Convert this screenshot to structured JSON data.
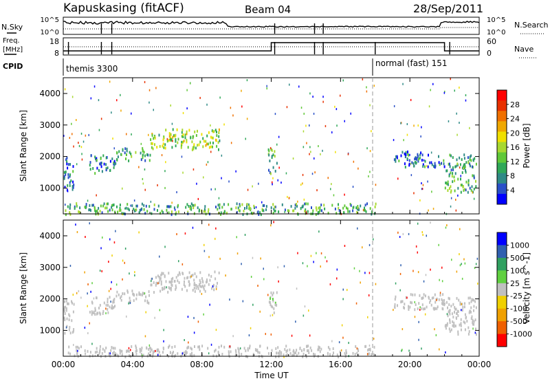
{
  "header": {
    "station": "Kapuskasing (fitACF)",
    "beam": "Beam 04",
    "date": "28/Sep/2011"
  },
  "noise_panel": {
    "left_label": "N.Sky",
    "right_label": "N.Search",
    "left_ticks": [
      "10^5",
      "10^0"
    ],
    "right_ticks": [
      "10^5",
      "10^0"
    ]
  },
  "freq_panel": {
    "left_label_line1": "Freq.",
    "left_label_line2": "[MHz]",
    "right_label": "Nave",
    "left_ticks": [
      "18",
      "8"
    ],
    "right_ticks": [
      "60",
      "0"
    ]
  },
  "cpid_panel": {
    "label": "CPID",
    "modes": [
      {
        "name": "themis 3300",
        "start_hour": 0
      },
      {
        "name": "normal (fast) 151",
        "start_hour": 18
      }
    ]
  },
  "x_axis": {
    "label": "Time UT",
    "tick_labels": [
      "00:00",
      "04:00",
      "08:00",
      "12:00",
      "16:00",
      "20:00",
      "00:00"
    ],
    "range_hours": [
      0,
      24
    ]
  },
  "chart_data": [
    {
      "type": "heatmap",
      "title": "Power",
      "ylabel": "Slant Range [km]",
      "ylim": [
        180,
        4500
      ],
      "y_ticks": [
        "1000",
        "2000",
        "3000",
        "4000"
      ],
      "colorbar": {
        "label": "Power [dB]",
        "ticks": [
          "28",
          "24",
          "20",
          "16",
          "12",
          "8",
          "4"
        ],
        "range": [
          0,
          30
        ],
        "colors": [
          "#0000ff",
          "#2a50c8",
          "#2f8a86",
          "#30a858",
          "#60c838",
          "#a8d830",
          "#f0e000",
          "#f0a800",
          "#f07000",
          "#e83000",
          "#ff0000"
        ]
      },
      "regions": [
        {
          "t0": 0.0,
          "t1": 0.6,
          "r0": 900,
          "r1": 2000,
          "level": 6
        },
        {
          "t0": 1.5,
          "t1": 3.0,
          "r0": 1500,
          "r1": 2100,
          "level": 6
        },
        {
          "t0": 3.0,
          "t1": 5.0,
          "r0": 1900,
          "r1": 2300,
          "level": 8
        },
        {
          "t0": 5.0,
          "t1": 9.0,
          "r0": 2250,
          "r1": 2900,
          "level": 14
        },
        {
          "t0": 11.8,
          "t1": 12.3,
          "r0": 1500,
          "r1": 2300,
          "level": 10
        },
        {
          "t0": 19.0,
          "t1": 22.0,
          "r0": 1700,
          "r1": 2200,
          "level": 6
        },
        {
          "t0": 22.0,
          "t1": 23.8,
          "r0": 900,
          "r1": 2100,
          "level": 10
        },
        {
          "t0": 0.0,
          "t1": 18.0,
          "r0": 200,
          "r1": 550,
          "level": 10
        }
      ]
    },
    {
      "type": "heatmap",
      "title": "Velocity",
      "ylabel": "Slant Range [km]",
      "ylim": [
        180,
        4500
      ],
      "y_ticks": [
        "1000",
        "2000",
        "3000",
        "4000"
      ],
      "colorbar": {
        "label": "Velocity [m s^-1]",
        "ticks": [
          "1000",
          "500",
          "100",
          "25",
          "-25",
          "-100",
          "-500",
          "-1000"
        ],
        "range": [
          -1000,
          1000
        ],
        "colors": [
          "#ff0000",
          "#f06000",
          "#f0a000",
          "#f0d000",
          "#c0c0c0",
          "#60d040",
          "#30a060",
          "#3060b0",
          "#0000ff"
        ]
      },
      "regions": [
        {
          "t0": 0.0,
          "t1": 0.6,
          "r0": 900,
          "r1": 2000,
          "level": 0
        },
        {
          "t0": 1.5,
          "t1": 3.0,
          "r0": 1500,
          "r1": 2100,
          "level": 0
        },
        {
          "t0": 3.0,
          "t1": 5.0,
          "r0": 1900,
          "r1": 2300,
          "level": 0
        },
        {
          "t0": 5.0,
          "t1": 9.0,
          "r0": 2250,
          "r1": 2900,
          "level": 0
        },
        {
          "t0": 11.8,
          "t1": 12.3,
          "r0": 1500,
          "r1": 2300,
          "level": 50
        },
        {
          "t0": 19.0,
          "t1": 22.0,
          "r0": 1700,
          "r1": 2200,
          "level": 0
        },
        {
          "t0": 22.0,
          "t1": 23.8,
          "r0": 900,
          "r1": 2100,
          "level": 0
        },
        {
          "t0": 0.0,
          "t1": 18.0,
          "r0": 200,
          "r1": 550,
          "level": 0
        }
      ]
    }
  ]
}
